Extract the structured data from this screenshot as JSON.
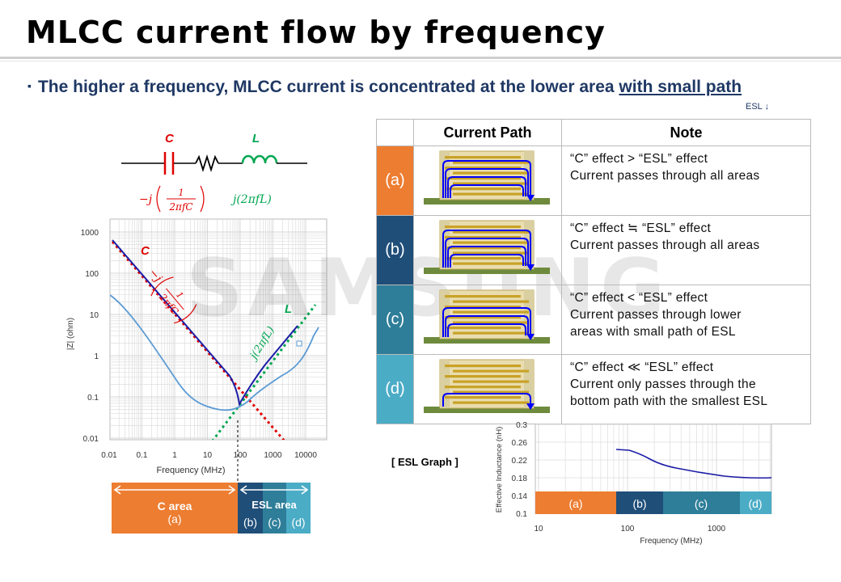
{
  "title": "MLCC current flow by frequency",
  "bullet": {
    "marker": "▪",
    "text_main": "The higher a frequency, MLCC current is concentrated at the lower area ",
    "text_underlined": "with small path",
    "sub_note": "ESL ↓"
  },
  "watermark": "SAMSUNG",
  "circuit": {
    "c_label": "C",
    "l_label": "L",
    "c_formula_prefix": "−j",
    "c_formula_num": "1",
    "c_formula_den": "2πfC",
    "l_formula": "j(2πfL)"
  },
  "impedance_chart": {
    "ylabel": "|Z| (ohm)",
    "xlabel": "Frequency (MHz)",
    "x_ticks": [
      "0.01",
      "0.1",
      "1",
      "10",
      "100",
      "1000",
      "10000"
    ],
    "y_ticks": [
      "1000",
      "100",
      "10",
      "1",
      "0.1",
      "0.01"
    ],
    "c_curve_label": "C",
    "l_curve_label": "L",
    "c_formula_prefix": "−j",
    "c_formula_num": "1",
    "c_formula_den": "2πfC",
    "l_formula": "j(2πfL)"
  },
  "area_bar": {
    "c_area": "C area",
    "c_sub": "(a)",
    "esl_area": "ESL area",
    "subs": [
      "(b)",
      "(c)",
      "(d)"
    ]
  },
  "table": {
    "headers": [
      "",
      "Current Path",
      "Note"
    ],
    "rows": [
      {
        "label": "(a)",
        "color": "#ed7d31",
        "note_line1": "“C” effect  >  “ESL” effect",
        "note_line2": "Current passes through all areas",
        "note_line3": ""
      },
      {
        "label": "(b)",
        "color": "#1f4e79",
        "note_line1": "“C” effect  ≒  “ESL” effect",
        "note_line2": "Current passes through all areas",
        "note_line3": ""
      },
      {
        "label": "(c)",
        "color": "#2e7e99",
        "note_line1": "“C” effect  <  “ESL” effect",
        "note_line2": "Current passes through lower",
        "note_line3": "areas with small path of ESL"
      },
      {
        "label": "(d)",
        "color": "#4bacc6",
        "note_line1": "“C” effect   ≪  “ESL” effect",
        "note_line2": "Current only passes through the",
        "note_line3": "bottom path with the smallest  ESL"
      }
    ]
  },
  "esl_graph": {
    "label": "[ ESL Graph ]",
    "ylabel": "Effective Inductance (nH)",
    "xlabel": "Frequency (MHz)",
    "y_ticks": [
      "0.3",
      "0.26",
      "0.22",
      "0.18",
      "0.14",
      "0.1"
    ],
    "x_ticks": [
      "10",
      "100",
      "1000"
    ],
    "bands": [
      "(a)",
      "(b)",
      "(c)",
      "(d)"
    ]
  },
  "colors": {
    "orange": "#ed7d31",
    "navy": "#1f4e79",
    "teal": "#2e7e99",
    "light_teal": "#4bacc6",
    "title_blue": "#1f3864",
    "c_red": "#e00000",
    "l_green": "#00a650",
    "z_curve": "#5b9bd5",
    "electrode_gold": "#c9a227",
    "pcb_green": "#6e8b3d",
    "current_blue": "#0000ff"
  }
}
